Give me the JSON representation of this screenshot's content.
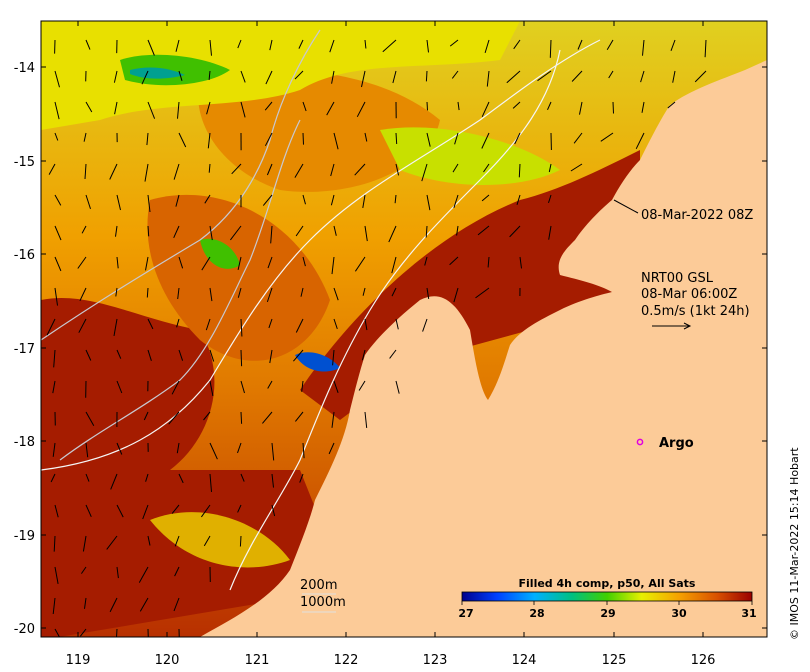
{
  "map": {
    "lon_ticks": [
      "119",
      "120",
      "121",
      "122",
      "123",
      "124",
      "125",
      "126"
    ],
    "lat_ticks": [
      "-14",
      "-15",
      "-16",
      "-17",
      "-18",
      "-19",
      "-20"
    ],
    "timestamp_label": "08-Mar-2022 08Z",
    "current_legend": {
      "line1": "NRT00 GSL",
      "line2": "08-Mar 06:00Z",
      "line3": "0.5m/s (1kt 24h)"
    },
    "argo_label": "Argo",
    "isobath_labels": [
      "200m",
      "1000m"
    ],
    "credit": "© IMOS 11-Mar-2022 15:14 Hobart",
    "colorbar": {
      "title": "Filled 4h comp, p50, All Sats",
      "ticks": [
        "27",
        "28",
        "29",
        "30",
        "31"
      ]
    },
    "colors": {
      "land": "#fccb98",
      "sst_warm": "#a51c00",
      "sst_mid": "#e07a00",
      "sst_cool": "#f2c400",
      "argo_marker": "#e000e0"
    }
  }
}
